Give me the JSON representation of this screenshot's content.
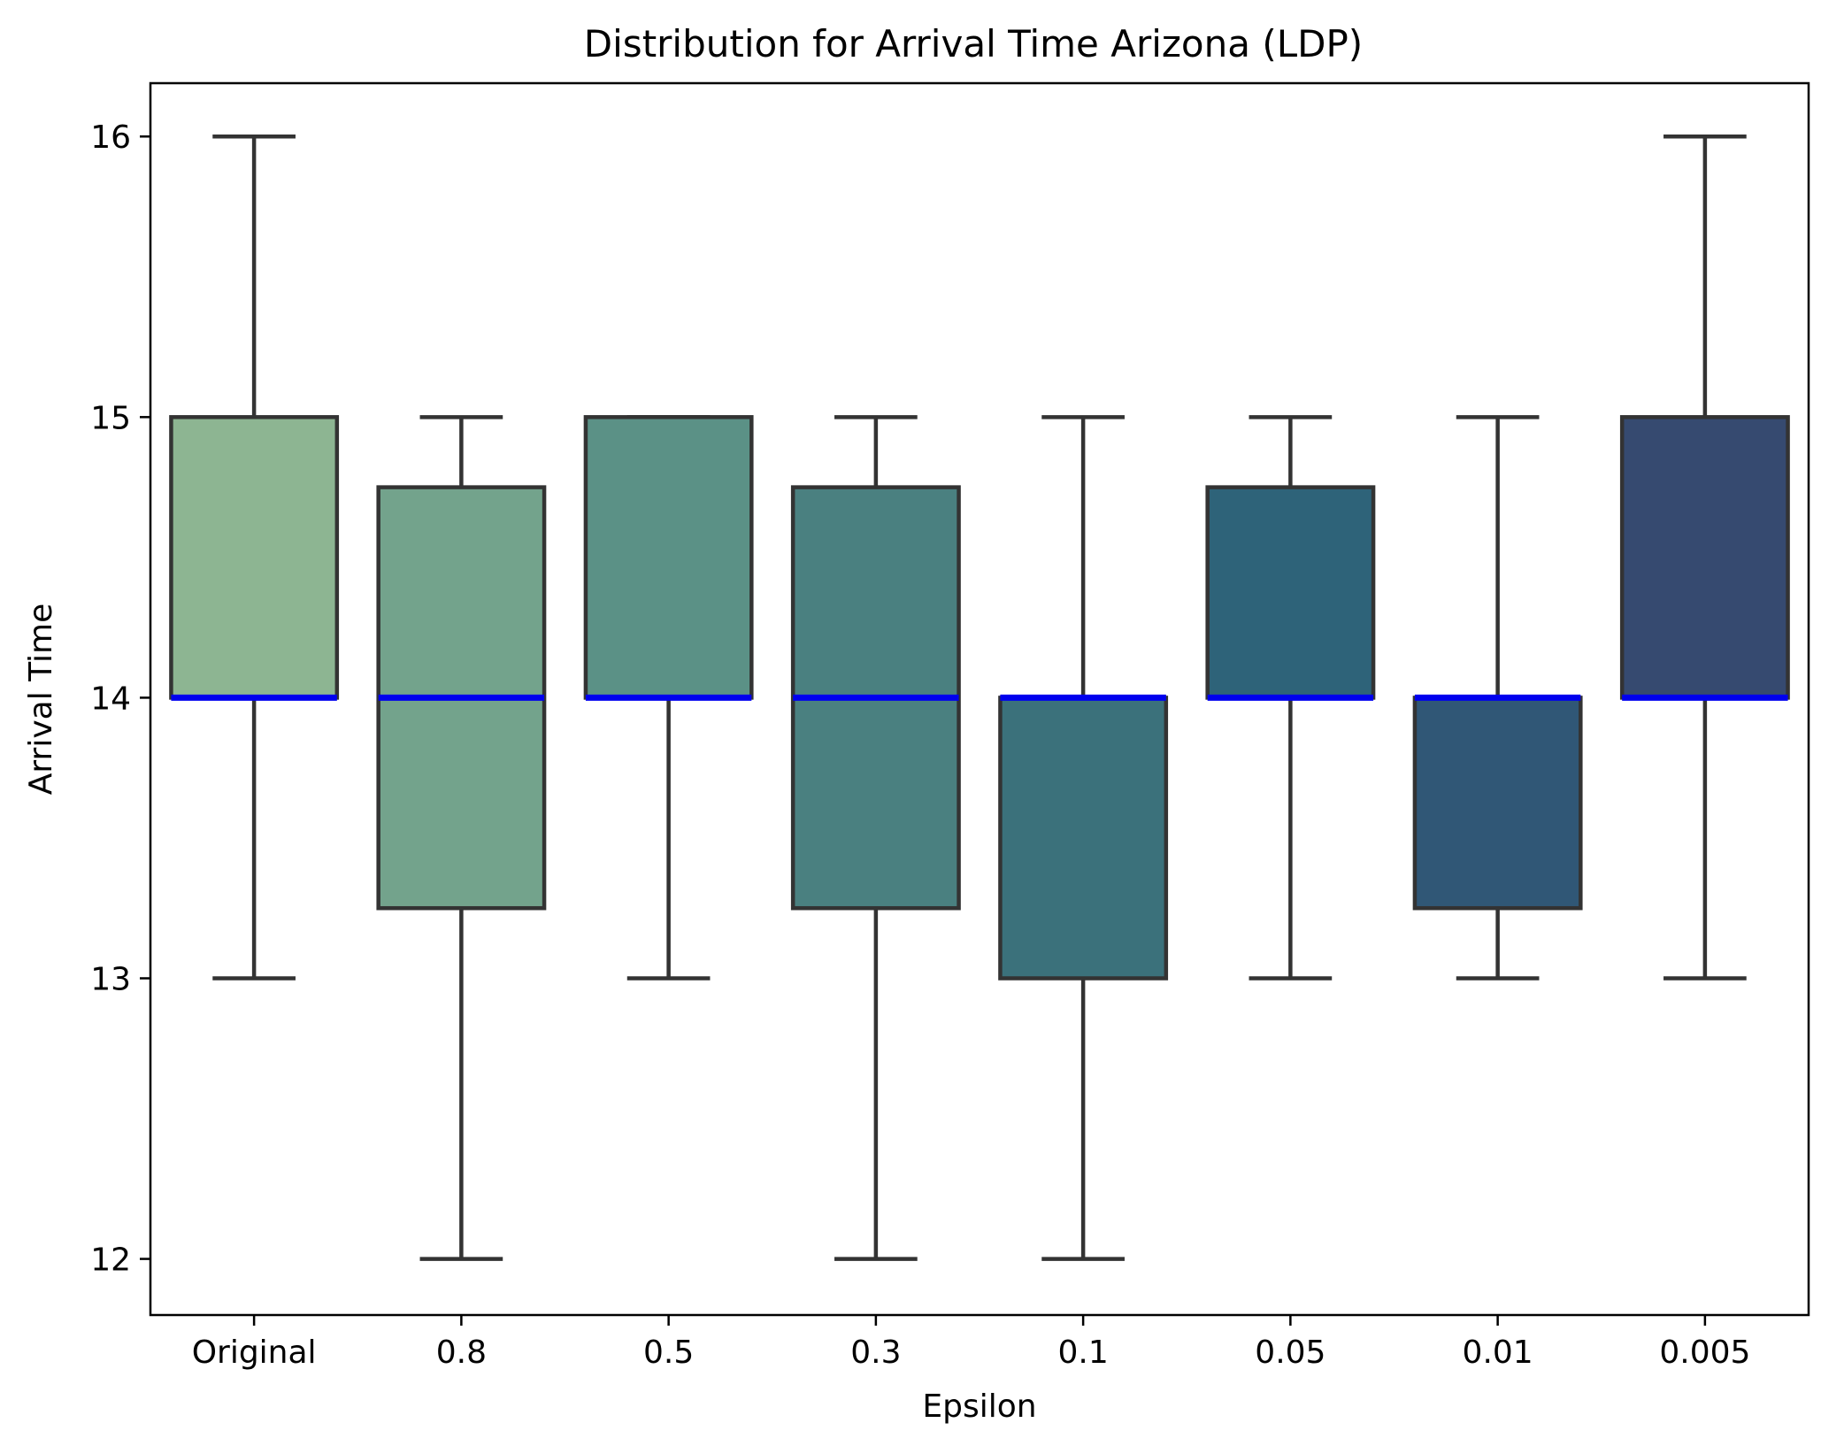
{
  "chart_data": {
    "type": "box",
    "title": "Distribution for Arrival Time Arizona (LDP)",
    "xlabel": "Epsilon",
    "ylabel": "Arrival Time",
    "categories": [
      "Original",
      "0.8",
      "0.5",
      "0.3",
      "0.1",
      "0.05",
      "0.01",
      "0.005"
    ],
    "boxes": [
      {
        "category": "Original",
        "whisker_low": 13,
        "q1": 14,
        "median": 14,
        "q3": 15,
        "whisker_high": 16,
        "color": "#8db592"
      },
      {
        "category": "0.8",
        "whisker_low": 12,
        "q1": 13.25,
        "median": 14,
        "q3": 14.75,
        "whisker_high": 15,
        "color": "#73a38c"
      },
      {
        "category": "0.5",
        "whisker_low": 13,
        "q1": 14,
        "median": 14,
        "q3": 15,
        "whisker_high": 15,
        "color": "#5b9186"
      },
      {
        "category": "0.3",
        "whisker_low": 12,
        "q1": 13.25,
        "median": 14,
        "q3": 14.75,
        "whisker_high": 15,
        "color": "#4a8080"
      },
      {
        "category": "0.1",
        "whisker_low": 12,
        "q1": 13,
        "median": 14,
        "q3": 14,
        "whisker_high": 15,
        "color": "#3b717b"
      },
      {
        "category": "0.05",
        "whisker_low": 13,
        "q1": 14,
        "median": 14,
        "q3": 14.75,
        "whisker_high": 15,
        "color": "#2e6379"
      },
      {
        "category": "0.01",
        "whisker_low": 13,
        "q1": 13.25,
        "median": 14,
        "q3": 14,
        "whisker_high": 15,
        "color": "#305776"
      },
      {
        "category": "0.005",
        "whisker_low": 13,
        "q1": 14,
        "median": 14,
        "q3": 15,
        "whisker_high": 16,
        "color": "#364a70"
      }
    ],
    "yticks": [
      12,
      13,
      14,
      15,
      16
    ],
    "ylim": [
      11.8,
      16.19
    ],
    "grid": false,
    "median_color": "#0000ee",
    "edge_color": "#333333"
  }
}
